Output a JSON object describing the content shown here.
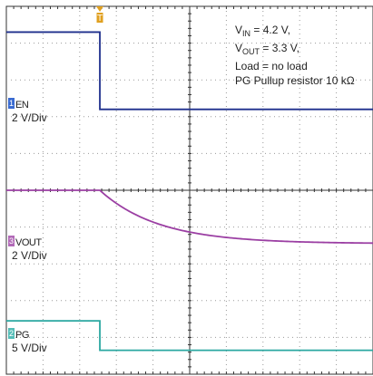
{
  "chart_data": {
    "type": "line",
    "title": "",
    "time_divisions": 10,
    "grid": true,
    "annotations": {
      "vin_sym": "V",
      "vin_sub": "IN",
      "vin_val": " = 4.2 V,",
      "vout_sym": "V",
      "vout_sub": "OUT",
      "vout_val": " = 3.3 V,",
      "load": "Load = no load",
      "pullup": "PG Pullup resistor 10 kΩ"
    },
    "trigger": {
      "label": "T",
      "x_div": 2.55
    },
    "channels": [
      {
        "id": "1",
        "name": "EN",
        "scale": "2 V/Div",
        "color": "#1e2f8c",
        "badge_color": "#3a6bd1",
        "ground_div": 2.8,
        "x": [
          0,
          2.55,
          2.55,
          10
        ],
        "y": [
          2.1,
          2.1,
          0,
          0
        ]
      },
      {
        "id": "3",
        "name": "VOUT",
        "scale": "2 V/Div",
        "color": "#9b3fa3",
        "badge_color": "#b26ab8",
        "ground_div": 6.6,
        "decay_start_div": 2.55,
        "decay_tau_div": 1.6,
        "x_end": 10,
        "v_start": 1.6,
        "v_end": 0.15
      },
      {
        "id": "2",
        "name": "PG",
        "scale": "5 V/Div",
        "color": "#2aa7a0",
        "badge_color": "#55bdb7",
        "ground_div": 9.4,
        "x": [
          0,
          2.55,
          2.55,
          10
        ],
        "y": [
          0.85,
          0.85,
          0.05,
          0.05
        ]
      }
    ]
  }
}
